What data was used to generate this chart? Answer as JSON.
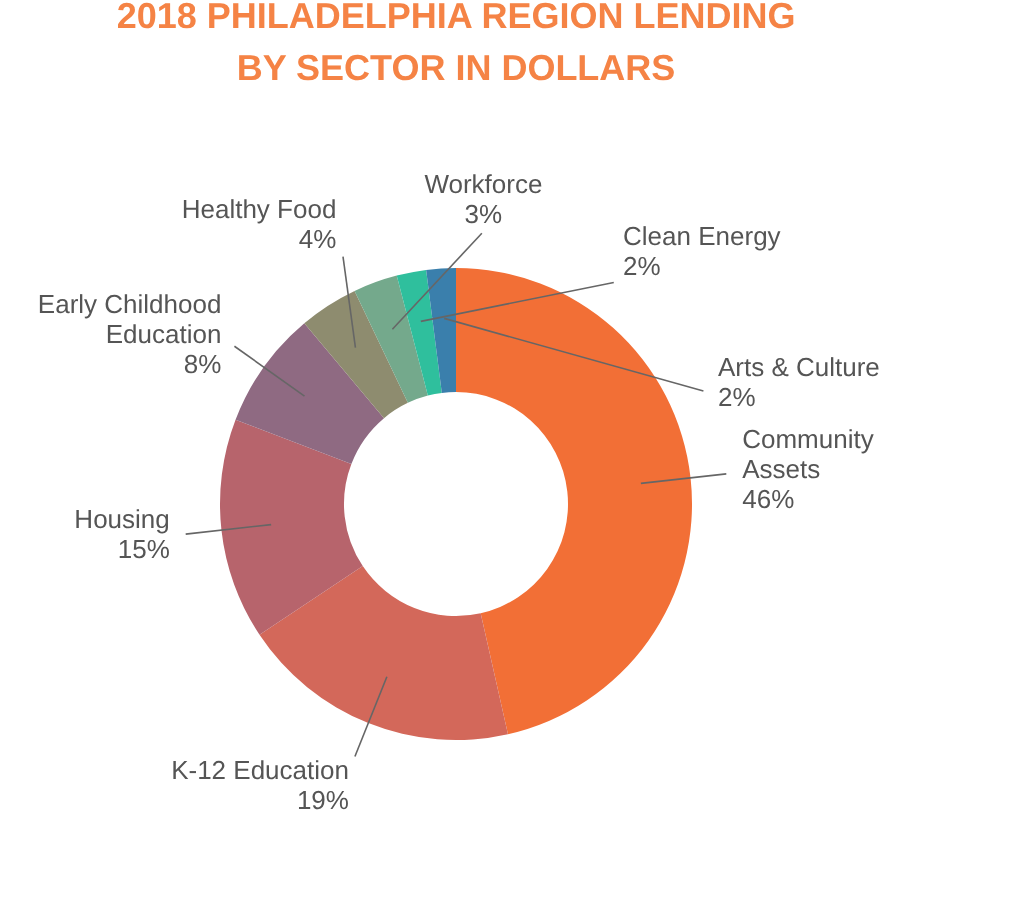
{
  "chart_data": {
    "type": "donut",
    "title": [
      "2018 PHILADELPHIA REGION LENDING",
      "BY SECTOR IN DOLLARS"
    ],
    "categories": [
      "Community Assets",
      "K-12 Education",
      "Housing",
      "Early Childhood Education",
      "Healthy Food",
      "Workforce",
      "Clean Energy",
      "Arts & Culture"
    ],
    "values": [
      46,
      19,
      15,
      8,
      4,
      3,
      2,
      2
    ],
    "colors": [
      "#f26f36",
      "#d3685a",
      "#b7646c",
      "#8f6a82",
      "#8e8c6f",
      "#74a98c",
      "#2fbf9d",
      "#3a7fac"
    ],
    "value_labels": [
      "46%",
      "19%",
      "15%",
      "8%",
      "4%",
      "3%",
      "2%",
      "2%"
    ]
  }
}
